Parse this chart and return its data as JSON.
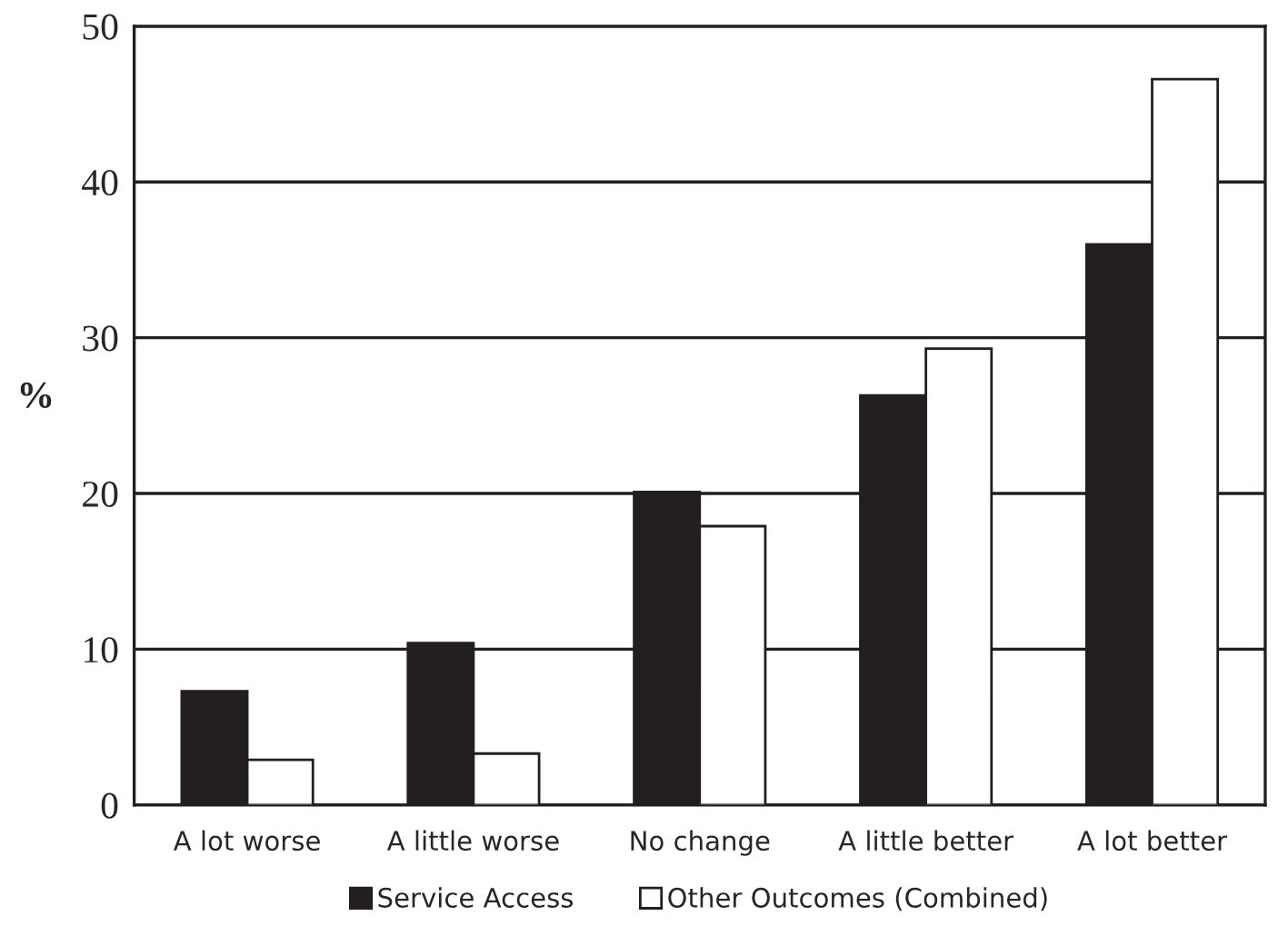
{
  "chart_data": {
    "type": "bar",
    "ylabel": "%",
    "categories": [
      "A lot worse",
      "A little worse",
      "No change",
      "A little better",
      "A lot better"
    ],
    "series": [
      {
        "name": "Service Access",
        "color": "#231f20",
        "values": [
          7.3,
          10.4,
          20.1,
          26.3,
          36.0
        ]
      },
      {
        "name": "Other Outcomes (Combined)",
        "color": "#ffffff",
        "values": [
          2.9,
          3.3,
          17.9,
          29.3,
          46.6
        ]
      }
    ],
    "ylim": [
      0,
      50
    ],
    "yticks": [
      0,
      10,
      20,
      30,
      40,
      50
    ],
    "grid": "y",
    "legend": "bottom"
  }
}
